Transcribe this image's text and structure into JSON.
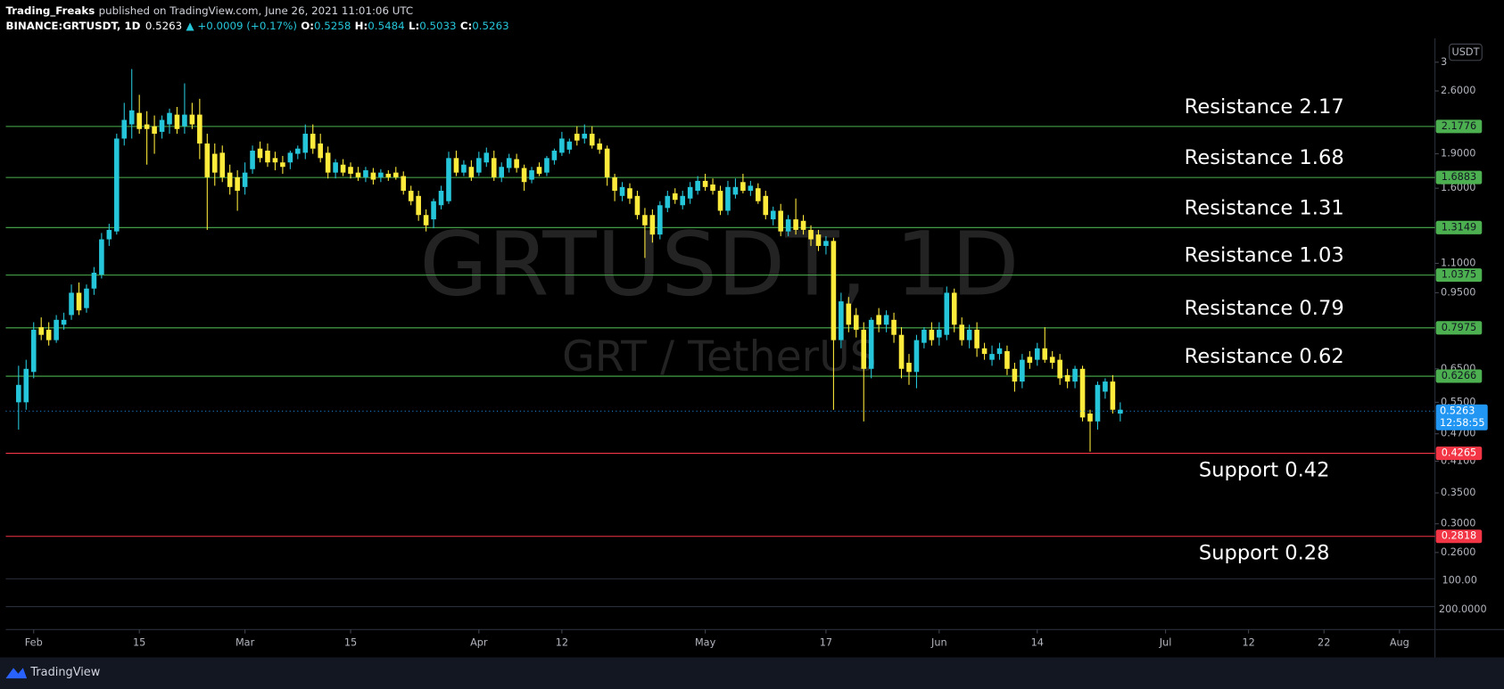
{
  "header": {
    "publisher": "Trading_Freaks",
    "published": "published on TradingView.com, June 26, 2021 11:01:06 UTC",
    "symbol": "BINANCE:GRTUSDT, 1D",
    "last": 0.5263,
    "change": "▲ +0.0009 (+0.17%)",
    "ohlc": [
      {
        "label": "O:",
        "value": 0.5258
      },
      {
        "label": "H:",
        "value": 0.5484
      },
      {
        "label": "L:",
        "value": 0.5033
      },
      {
        "label": "C:",
        "value": 0.5263
      }
    ]
  },
  "footer": {
    "brand": "TradingView"
  },
  "chart_data": {
    "type": "candlestick",
    "watermark": "GRTUSDT, 1D",
    "watermark_sub": "GRT / TetherUS",
    "currency": "USDT",
    "countdown": "12:58:55",
    "up_color": "#26c6da",
    "down_color": "#ffeb3b",
    "log_scale": true,
    "xlim": [
      28.3,
      217.7
    ],
    "ylim": [
      0.177,
      3.38
    ],
    "xticks": [
      {
        "value": 32,
        "label": "Feb"
      },
      {
        "value": 46,
        "label": "15"
      },
      {
        "value": 60,
        "label": "Mar"
      },
      {
        "value": 74,
        "label": "15"
      },
      {
        "value": 91,
        "label": "Apr"
      },
      {
        "value": 102,
        "label": "12"
      },
      {
        "value": 121,
        "label": "May"
      },
      {
        "value": 137,
        "label": "17"
      },
      {
        "value": 152,
        "label": "Jun"
      },
      {
        "value": 165,
        "label": "14"
      },
      {
        "value": 182,
        "label": "Jul"
      },
      {
        "value": 193,
        "label": "12"
      },
      {
        "value": 203,
        "label": "22"
      },
      {
        "value": 213,
        "label": "Aug"
      }
    ],
    "yticks": [
      3,
      {
        "value": 2.6,
        "label": "2.6000"
      },
      {
        "value": 1.9,
        "label": "1.9000"
      },
      {
        "value": 1.6,
        "label": "1.6000"
      },
      {
        "value": 1.1,
        "label": "1.1000"
      },
      {
        "value": 0.95,
        "label": "0.9500"
      },
      {
        "value": 0.65,
        "label": "0.6500"
      },
      {
        "value": 0.55,
        "label": "0.5500"
      },
      {
        "value": 0.47,
        "label": "0.4700"
      },
      {
        "value": 0.41,
        "label": "0.4100"
      },
      {
        "value": 0.35,
        "label": "0.3500"
      },
      {
        "value": 0.3,
        "label": "0.3000"
      },
      {
        "value": 0.26,
        "label": "0.2600"
      }
    ],
    "pane_labels": [
      "100.00",
      "200.0000"
    ],
    "levels": [
      {
        "value": 2.1776,
        "color": "#4caf50",
        "note": "Resistance  2.17"
      },
      {
        "value": 1.6883,
        "color": "#4caf50",
        "note": "Resistance  1.68"
      },
      {
        "value": 1.3149,
        "color": "#4caf50",
        "note": "Resistance 1.31"
      },
      {
        "value": 1.0375,
        "color": "#4caf50",
        "note": "Resistance 1.03"
      },
      {
        "value": 0.7975,
        "color": "#4caf50",
        "note": "Resistance 0.79"
      },
      {
        "value": 0.6266,
        "color": "#4caf50",
        "note": "Resistance 0.62"
      },
      {
        "value": 0.4265,
        "color": "#f23645",
        "note": "Support 0.42"
      },
      {
        "value": 0.2818,
        "color": "#f23645",
        "note": "Support 0.28"
      }
    ],
    "candles": [
      [
        30,
        0.55,
        0.66,
        0.48,
        0.6
      ],
      [
        31,
        0.55,
        0.68,
        0.53,
        0.65
      ],
      [
        32,
        0.64,
        0.82,
        0.62,
        0.79
      ],
      [
        33,
        0.8,
        0.84,
        0.75,
        0.77
      ],
      [
        34,
        0.79,
        0.82,
        0.73,
        0.75
      ],
      [
        35,
        0.75,
        0.85,
        0.74,
        0.83
      ],
      [
        36,
        0.81,
        0.86,
        0.79,
        0.83
      ],
      [
        37,
        0.85,
        0.99,
        0.83,
        0.95
      ],
      [
        38,
        0.95,
        1.0,
        0.85,
        0.87
      ],
      [
        39,
        0.88,
        0.99,
        0.86,
        0.97
      ],
      [
        40,
        0.97,
        1.08,
        0.94,
        1.05
      ],
      [
        41,
        1.04,
        1.28,
        1.02,
        1.24
      ],
      [
        42,
        1.24,
        1.34,
        1.2,
        1.3
      ],
      [
        43,
        1.29,
        2.1,
        1.27,
        2.05
      ],
      [
        44,
        2.05,
        2.45,
        1.98,
        2.25
      ],
      [
        45,
        2.2,
        2.9,
        2.05,
        2.36
      ],
      [
        46,
        2.33,
        2.55,
        2.1,
        2.15
      ],
      [
        47,
        2.2,
        2.35,
        1.8,
        2.15
      ],
      [
        48,
        2.18,
        2.3,
        1.9,
        2.1
      ],
      [
        49,
        2.12,
        2.3,
        2.05,
        2.25
      ],
      [
        50,
        2.2,
        2.38,
        2.1,
        2.33
      ],
      [
        51,
        2.31,
        2.4,
        2.1,
        2.15
      ],
      [
        52,
        2.18,
        2.7,
        2.1,
        2.31
      ],
      [
        53,
        2.31,
        2.45,
        2.15,
        2.2
      ],
      [
        54,
        2.31,
        2.5,
        1.85,
        2.0
      ],
      [
        55,
        2.0,
        2.1,
        1.3,
        1.69
      ],
      [
        56,
        1.9,
        2.0,
        1.62,
        1.73
      ],
      [
        57,
        1.91,
        1.98,
        1.65,
        1.69
      ],
      [
        58,
        1.73,
        1.8,
        1.55,
        1.61
      ],
      [
        59,
        1.69,
        1.75,
        1.43,
        1.58
      ],
      [
        60,
        1.61,
        1.82,
        1.55,
        1.73
      ],
      [
        61,
        1.76,
        1.98,
        1.72,
        1.93
      ],
      [
        62,
        1.95,
        2.02,
        1.82,
        1.86
      ],
      [
        63,
        1.93,
        2.0,
        1.78,
        1.82
      ],
      [
        64,
        1.86,
        1.92,
        1.75,
        1.82
      ],
      [
        65,
        1.82,
        1.88,
        1.72,
        1.78
      ],
      [
        66,
        1.82,
        1.93,
        1.76,
        1.91
      ],
      [
        67,
        1.9,
        1.98,
        1.85,
        1.95
      ],
      [
        68,
        1.91,
        2.2,
        1.85,
        2.1
      ],
      [
        69,
        2.1,
        2.2,
        1.9,
        1.95
      ],
      [
        70,
        2.0,
        2.1,
        1.82,
        1.86
      ],
      [
        71,
        1.91,
        1.97,
        1.68,
        1.73
      ],
      [
        72,
        1.73,
        1.85,
        1.68,
        1.82
      ],
      [
        73,
        1.8,
        1.85,
        1.7,
        1.73
      ],
      [
        74,
        1.78,
        1.82,
        1.68,
        1.72
      ],
      [
        75,
        1.73,
        1.78,
        1.66,
        1.69
      ],
      [
        76,
        1.69,
        1.78,
        1.65,
        1.75
      ],
      [
        77,
        1.73,
        1.77,
        1.63,
        1.67
      ],
      [
        78,
        1.69,
        1.76,
        1.65,
        1.73
      ],
      [
        79,
        1.72,
        1.75,
        1.66,
        1.69
      ],
      [
        80,
        1.73,
        1.78,
        1.67,
        1.69
      ],
      [
        81,
        1.7,
        1.74,
        1.55,
        1.58
      ],
      [
        82,
        1.58,
        1.62,
        1.47,
        1.5
      ],
      [
        83,
        1.54,
        1.58,
        1.36,
        1.4
      ],
      [
        84,
        1.4,
        1.44,
        1.29,
        1.33
      ],
      [
        85,
        1.37,
        1.52,
        1.31,
        1.5
      ],
      [
        86,
        1.47,
        1.62,
        1.44,
        1.58
      ],
      [
        87,
        1.5,
        1.92,
        1.48,
        1.86
      ],
      [
        88,
        1.86,
        1.93,
        1.7,
        1.73
      ],
      [
        89,
        1.73,
        1.84,
        1.7,
        1.8
      ],
      [
        90,
        1.78,
        1.84,
        1.66,
        1.69
      ],
      [
        91,
        1.73,
        1.92,
        1.7,
        1.86
      ],
      [
        92,
        1.82,
        1.96,
        1.78,
        1.91
      ],
      [
        93,
        1.86,
        1.93,
        1.66,
        1.69
      ],
      [
        94,
        1.69,
        1.82,
        1.65,
        1.78
      ],
      [
        95,
        1.77,
        1.9,
        1.73,
        1.86
      ],
      [
        96,
        1.85,
        1.9,
        1.73,
        1.77
      ],
      [
        97,
        1.77,
        1.8,
        1.58,
        1.65
      ],
      [
        98,
        1.67,
        1.78,
        1.64,
        1.75
      ],
      [
        99,
        1.78,
        1.82,
        1.7,
        1.72
      ],
      [
        100,
        1.73,
        1.88,
        1.7,
        1.86
      ],
      [
        101,
        1.84,
        1.95,
        1.8,
        1.93
      ],
      [
        102,
        1.91,
        2.12,
        1.88,
        2.05
      ],
      [
        103,
        1.94,
        2.05,
        1.9,
        2.02
      ],
      [
        104,
        2.1,
        2.18,
        1.98,
        2.03
      ],
      [
        105,
        2.05,
        2.2,
        2.0,
        2.1
      ],
      [
        106,
        2.1,
        2.18,
        1.95,
        1.98
      ],
      [
        107,
        2.0,
        2.05,
        1.9,
        1.94
      ],
      [
        108,
        1.95,
        1.98,
        1.62,
        1.69
      ],
      [
        109,
        1.69,
        1.72,
        1.5,
        1.58
      ],
      [
        110,
        1.54,
        1.65,
        1.5,
        1.61
      ],
      [
        111,
        1.6,
        1.64,
        1.48,
        1.52
      ],
      [
        112,
        1.54,
        1.58,
        1.37,
        1.4
      ],
      [
        113,
        1.4,
        1.45,
        1.13,
        1.33
      ],
      [
        114,
        1.4,
        1.44,
        1.22,
        1.27
      ],
      [
        115,
        1.27,
        1.5,
        1.24,
        1.47
      ],
      [
        116,
        1.45,
        1.58,
        1.42,
        1.54
      ],
      [
        117,
        1.56,
        1.6,
        1.48,
        1.51
      ],
      [
        118,
        1.47,
        1.58,
        1.44,
        1.54
      ],
      [
        119,
        1.52,
        1.65,
        1.48,
        1.61
      ],
      [
        120,
        1.58,
        1.7,
        1.55,
        1.66
      ],
      [
        121,
        1.66,
        1.72,
        1.58,
        1.61
      ],
      [
        122,
        1.63,
        1.68,
        1.55,
        1.58
      ],
      [
        123,
        1.58,
        1.62,
        1.4,
        1.43
      ],
      [
        124,
        1.43,
        1.66,
        1.4,
        1.61
      ],
      [
        125,
        1.55,
        1.68,
        1.52,
        1.61
      ],
      [
        126,
        1.65,
        1.72,
        1.56,
        1.58
      ],
      [
        127,
        1.58,
        1.66,
        1.54,
        1.62
      ],
      [
        128,
        1.6,
        1.64,
        1.48,
        1.5
      ],
      [
        129,
        1.54,
        1.58,
        1.37,
        1.4
      ],
      [
        130,
        1.37,
        1.46,
        1.33,
        1.43
      ],
      [
        131,
        1.43,
        1.48,
        1.26,
        1.29
      ],
      [
        132,
        1.29,
        1.4,
        1.26,
        1.37
      ],
      [
        133,
        1.37,
        1.52,
        1.27,
        1.3
      ],
      [
        134,
        1.36,
        1.4,
        1.27,
        1.3
      ],
      [
        135,
        1.3,
        1.33,
        1.2,
        1.24
      ],
      [
        136,
        1.27,
        1.3,
        1.17,
        1.2
      ],
      [
        137,
        1.2,
        1.26,
        1.15,
        1.23
      ],
      [
        138,
        1.23,
        1.25,
        0.53,
        0.75
      ],
      [
        139,
        0.75,
        0.95,
        0.72,
        0.91
      ],
      [
        140,
        0.9,
        0.93,
        0.78,
        0.81
      ],
      [
        141,
        0.85,
        0.88,
        0.76,
        0.79
      ],
      [
        142,
        0.79,
        0.82,
        0.5,
        0.65
      ],
      [
        143,
        0.65,
        0.84,
        0.62,
        0.83
      ],
      [
        144,
        0.85,
        0.88,
        0.78,
        0.81
      ],
      [
        145,
        0.81,
        0.87,
        0.78,
        0.85
      ],
      [
        146,
        0.83,
        0.86,
        0.74,
        0.77
      ],
      [
        147,
        0.77,
        0.8,
        0.62,
        0.65
      ],
      [
        148,
        0.67,
        0.7,
        0.6,
        0.64
      ],
      [
        149,
        0.64,
        0.77,
        0.59,
        0.75
      ],
      [
        150,
        0.74,
        0.8,
        0.72,
        0.79
      ],
      [
        151,
        0.79,
        0.82,
        0.73,
        0.75
      ],
      [
        152,
        0.76,
        0.82,
        0.73,
        0.79
      ],
      [
        153,
        0.77,
        0.98,
        0.75,
        0.95
      ],
      [
        154,
        0.95,
        0.97,
        0.78,
        0.81
      ],
      [
        155,
        0.81,
        0.84,
        0.73,
        0.75
      ],
      [
        156,
        0.75,
        0.81,
        0.72,
        0.79
      ],
      [
        157,
        0.79,
        0.82,
        0.69,
        0.72
      ],
      [
        158,
        0.72,
        0.74,
        0.68,
        0.7
      ],
      [
        159,
        0.68,
        0.73,
        0.66,
        0.7
      ],
      [
        160,
        0.7,
        0.74,
        0.68,
        0.72
      ],
      [
        161,
        0.71,
        0.73,
        0.63,
        0.65
      ],
      [
        162,
        0.65,
        0.67,
        0.58,
        0.61
      ],
      [
        163,
        0.61,
        0.7,
        0.59,
        0.68
      ],
      [
        164,
        0.69,
        0.71,
        0.65,
        0.67
      ],
      [
        165,
        0.68,
        0.74,
        0.66,
        0.72
      ],
      [
        166,
        0.72,
        0.8,
        0.67,
        0.68
      ],
      [
        167,
        0.69,
        0.71,
        0.65,
        0.67
      ],
      [
        168,
        0.68,
        0.7,
        0.6,
        0.62
      ],
      [
        169,
        0.63,
        0.65,
        0.59,
        0.61
      ],
      [
        170,
        0.61,
        0.66,
        0.59,
        0.65
      ],
      [
        171,
        0.65,
        0.66,
        0.5,
        0.51
      ],
      [
        172,
        0.52,
        0.53,
        0.43,
        0.5
      ],
      [
        173,
        0.5,
        0.61,
        0.48,
        0.6
      ],
      [
        174,
        0.58,
        0.62,
        0.56,
        0.61
      ],
      [
        175,
        0.61,
        0.63,
        0.52,
        0.53
      ],
      [
        176,
        0.52,
        0.55,
        0.5,
        0.53
      ]
    ]
  }
}
